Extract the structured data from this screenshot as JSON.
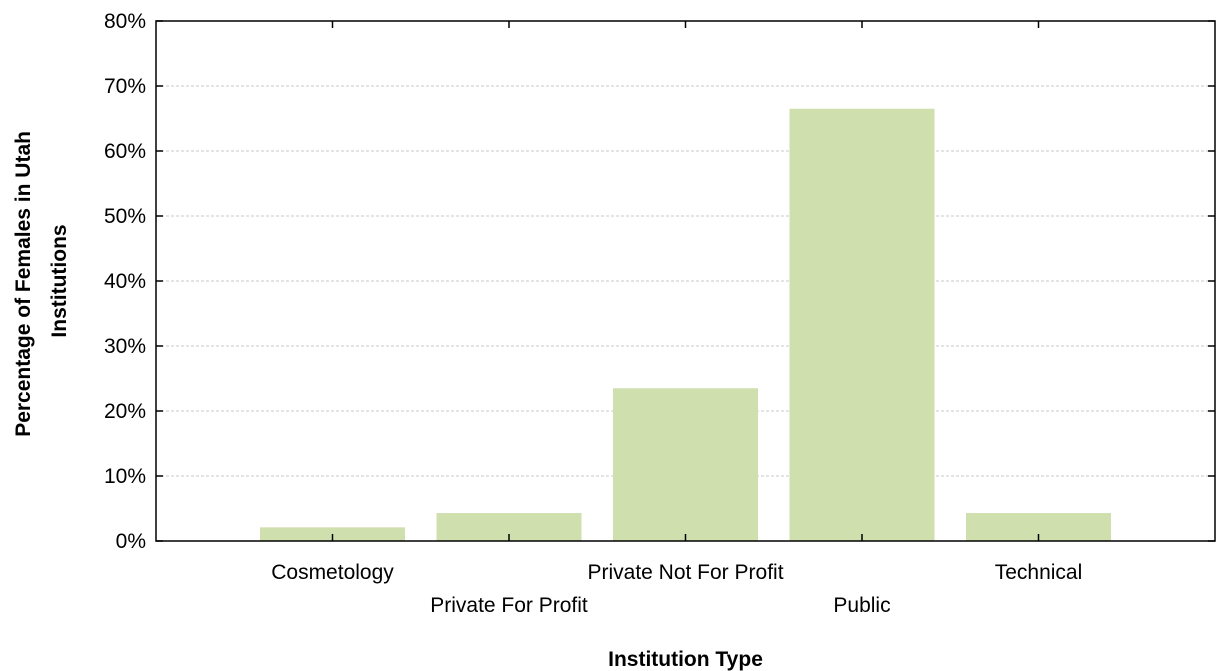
{
  "chart_data": {
    "type": "bar",
    "title": "",
    "xlabel": "Institution Type",
    "ylabel_lines": [
      "Percentage of Females in Utah",
      "Institutions"
    ],
    "categories": [
      "Cosmetology",
      "Private For Profit",
      "Private Not For Profit",
      "Public",
      "Technical"
    ],
    "values": [
      0.021,
      0.043,
      0.235,
      0.665,
      0.043
    ],
    "ylim": [
      0,
      0.8
    ],
    "yticks": [
      0,
      0.1,
      0.2,
      0.3,
      0.4,
      0.5,
      0.6,
      0.7,
      0.8
    ],
    "ytick_labels": [
      "0%",
      "10%",
      "20%",
      "30%",
      "40%",
      "50%",
      "60%",
      "70%",
      "80%"
    ],
    "grid": true,
    "legend": "none",
    "bar_color": "#cfdfad"
  }
}
